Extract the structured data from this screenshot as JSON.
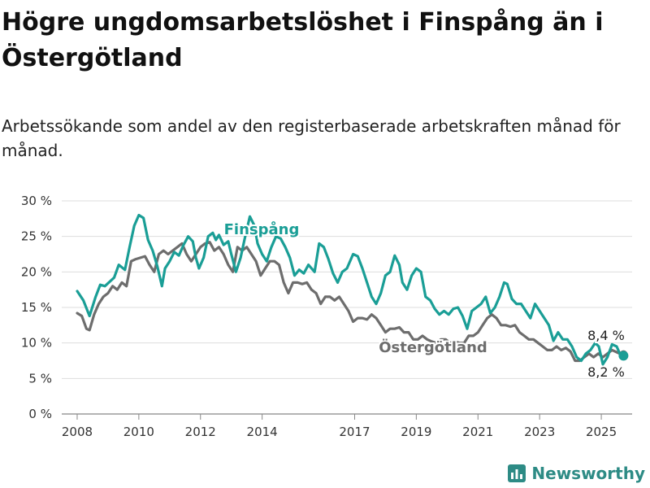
{
  "title": "Högre ungdomsarbetslöshet i Finspång än i Östergötland",
  "subtitle": "Arbetssökande som andel av den registerbaserade arbetskraften månad för månad.",
  "brand": {
    "name": "Newsworthy",
    "icon": "newsworthy-logo-icon",
    "color": "#2d8b85"
  },
  "chart_data": {
    "type": "line",
    "title": "Högre ungdomsarbetslöshet i Finspång än i Östergötland",
    "xlabel": "",
    "ylabel": "",
    "xlim": [
      2007.5,
      2026.0
    ],
    "ylim": [
      0,
      30
    ],
    "grid": true,
    "legend": "inline",
    "x_ticks": [
      2008,
      2010,
      2012,
      2014,
      2017,
      2019,
      2021,
      2023,
      2025
    ],
    "y_ticks": [
      0,
      5,
      10,
      15,
      20,
      25,
      30
    ],
    "y_tick_labels": [
      "0 %",
      "5 %",
      "10 %",
      "15 %",
      "20 %",
      "25 %",
      "30 %"
    ],
    "series": [
      {
        "name": "Finspång",
        "color": "#1a9e96",
        "end_label": "8,2 %",
        "points": [
          [
            2008.0,
            17.3
          ],
          [
            2008.2,
            16.0
          ],
          [
            2008.4,
            13.8
          ],
          [
            2008.6,
            16.5
          ],
          [
            2008.75,
            18.2
          ],
          [
            2008.9,
            18.0
          ],
          [
            2009.05,
            18.6
          ],
          [
            2009.2,
            19.2
          ],
          [
            2009.35,
            21.0
          ],
          [
            2009.55,
            20.3
          ],
          [
            2009.7,
            23.5
          ],
          [
            2009.85,
            26.5
          ],
          [
            2010.0,
            28.0
          ],
          [
            2010.15,
            27.6
          ],
          [
            2010.3,
            24.5
          ],
          [
            2010.45,
            23.0
          ],
          [
            2010.6,
            20.8
          ],
          [
            2010.75,
            18.0
          ],
          [
            2010.85,
            20.5
          ],
          [
            2011.0,
            21.5
          ],
          [
            2011.15,
            22.8
          ],
          [
            2011.3,
            22.3
          ],
          [
            2011.45,
            23.8
          ],
          [
            2011.6,
            25.0
          ],
          [
            2011.75,
            24.3
          ],
          [
            2011.85,
            22.0
          ],
          [
            2011.95,
            20.5
          ],
          [
            2012.1,
            22.0
          ],
          [
            2012.25,
            25.0
          ],
          [
            2012.4,
            25.5
          ],
          [
            2012.5,
            24.5
          ],
          [
            2012.6,
            25.2
          ],
          [
            2012.75,
            23.8
          ],
          [
            2012.9,
            24.3
          ],
          [
            2013.0,
            22.5
          ],
          [
            2013.15,
            20.0
          ],
          [
            2013.3,
            22.0
          ],
          [
            2013.45,
            25.0
          ],
          [
            2013.6,
            27.8
          ],
          [
            2013.75,
            26.5
          ],
          [
            2013.85,
            24.0
          ],
          [
            2014.0,
            22.5
          ],
          [
            2014.15,
            21.5
          ],
          [
            2014.3,
            23.5
          ],
          [
            2014.45,
            25.0
          ],
          [
            2014.6,
            24.7
          ],
          [
            2014.75,
            23.5
          ],
          [
            2014.9,
            22.0
          ],
          [
            2015.05,
            19.5
          ],
          [
            2015.2,
            20.3
          ],
          [
            2015.35,
            19.8
          ],
          [
            2015.5,
            21.0
          ],
          [
            2015.7,
            20.0
          ],
          [
            2015.85,
            24.0
          ],
          [
            2016.0,
            23.5
          ],
          [
            2016.15,
            21.8
          ],
          [
            2016.3,
            19.8
          ],
          [
            2016.45,
            18.5
          ],
          [
            2016.6,
            20.0
          ],
          [
            2016.75,
            20.5
          ],
          [
            2016.95,
            22.5
          ],
          [
            2017.1,
            22.2
          ],
          [
            2017.25,
            20.5
          ],
          [
            2017.4,
            18.5
          ],
          [
            2017.55,
            16.5
          ],
          [
            2017.7,
            15.5
          ],
          [
            2017.85,
            17.0
          ],
          [
            2018.0,
            19.5
          ],
          [
            2018.15,
            20.0
          ],
          [
            2018.3,
            22.3
          ],
          [
            2018.45,
            21.0
          ],
          [
            2018.55,
            18.5
          ],
          [
            2018.7,
            17.5
          ],
          [
            2018.85,
            19.5
          ],
          [
            2019.0,
            20.5
          ],
          [
            2019.15,
            20.0
          ],
          [
            2019.3,
            16.5
          ],
          [
            2019.45,
            16.0
          ],
          [
            2019.6,
            14.8
          ],
          [
            2019.75,
            14.0
          ],
          [
            2019.9,
            14.5
          ],
          [
            2020.05,
            14.0
          ],
          [
            2020.2,
            14.8
          ],
          [
            2020.35,
            15.0
          ],
          [
            2020.5,
            13.8
          ],
          [
            2020.65,
            12.0
          ],
          [
            2020.8,
            14.5
          ],
          [
            2020.95,
            15.0
          ],
          [
            2021.1,
            15.5
          ],
          [
            2021.25,
            16.5
          ],
          [
            2021.4,
            14.2
          ],
          [
            2021.55,
            15.0
          ],
          [
            2021.7,
            16.5
          ],
          [
            2021.85,
            18.5
          ],
          [
            2021.95,
            18.3
          ],
          [
            2022.1,
            16.2
          ],
          [
            2022.25,
            15.5
          ],
          [
            2022.4,
            15.5
          ],
          [
            2022.55,
            14.5
          ],
          [
            2022.7,
            13.5
          ],
          [
            2022.85,
            15.5
          ],
          [
            2023.0,
            14.5
          ],
          [
            2023.15,
            13.5
          ],
          [
            2023.3,
            12.5
          ],
          [
            2023.45,
            10.3
          ],
          [
            2023.6,
            11.5
          ],
          [
            2023.75,
            10.5
          ],
          [
            2023.9,
            10.5
          ],
          [
            2024.05,
            9.5
          ],
          [
            2024.2,
            8.0
          ],
          [
            2024.35,
            7.5
          ],
          [
            2024.5,
            8.5
          ],
          [
            2024.65,
            9.0
          ],
          [
            2024.8,
            10.0
          ],
          [
            2024.92,
            9.5
          ],
          [
            2025.05,
            7.0
          ],
          [
            2025.2,
            8.0
          ],
          [
            2025.35,
            9.8
          ],
          [
            2025.5,
            9.5
          ],
          [
            2025.6,
            8.5
          ],
          [
            2025.72,
            8.2
          ]
        ]
      },
      {
        "name": "Östergötland",
        "color": "#6d6d6d",
        "end_label": "8,4 %",
        "points": [
          [
            2008.0,
            14.2
          ],
          [
            2008.15,
            13.8
          ],
          [
            2008.3,
            12.0
          ],
          [
            2008.4,
            11.8
          ],
          [
            2008.55,
            14.0
          ],
          [
            2008.7,
            15.5
          ],
          [
            2008.85,
            16.5
          ],
          [
            2009.0,
            17.0
          ],
          [
            2009.15,
            18.0
          ],
          [
            2009.3,
            17.5
          ],
          [
            2009.45,
            18.5
          ],
          [
            2009.6,
            18.0
          ],
          [
            2009.75,
            21.5
          ],
          [
            2009.9,
            21.8
          ],
          [
            2010.05,
            22.0
          ],
          [
            2010.2,
            22.2
          ],
          [
            2010.35,
            21.0
          ],
          [
            2010.5,
            20.0
          ],
          [
            2010.65,
            22.5
          ],
          [
            2010.8,
            23.0
          ],
          [
            2010.95,
            22.5
          ],
          [
            2011.1,
            23.0
          ],
          [
            2011.25,
            23.5
          ],
          [
            2011.4,
            24.0
          ],
          [
            2011.55,
            22.5
          ],
          [
            2011.7,
            21.5
          ],
          [
            2011.85,
            22.5
          ],
          [
            2012.0,
            23.5
          ],
          [
            2012.15,
            24.0
          ],
          [
            2012.3,
            24.2
          ],
          [
            2012.45,
            23.0
          ],
          [
            2012.6,
            23.5
          ],
          [
            2012.75,
            22.5
          ],
          [
            2012.9,
            21.0
          ],
          [
            2013.05,
            20.0
          ],
          [
            2013.2,
            23.5
          ],
          [
            2013.35,
            23.0
          ],
          [
            2013.5,
            23.5
          ],
          [
            2013.65,
            22.5
          ],
          [
            2013.8,
            21.5
          ],
          [
            2013.95,
            19.5
          ],
          [
            2014.1,
            20.5
          ],
          [
            2014.25,
            21.5
          ],
          [
            2014.4,
            21.5
          ],
          [
            2014.55,
            21.0
          ],
          [
            2014.7,
            18.5
          ],
          [
            2014.85,
            17.0
          ],
          [
            2015.0,
            18.5
          ],
          [
            2015.15,
            18.5
          ],
          [
            2015.3,
            18.3
          ],
          [
            2015.45,
            18.5
          ],
          [
            2015.6,
            17.5
          ],
          [
            2015.75,
            17.0
          ],
          [
            2015.9,
            15.5
          ],
          [
            2016.05,
            16.5
          ],
          [
            2016.2,
            16.5
          ],
          [
            2016.35,
            16.0
          ],
          [
            2016.5,
            16.5
          ],
          [
            2016.65,
            15.5
          ],
          [
            2016.8,
            14.5
          ],
          [
            2016.95,
            13.0
          ],
          [
            2017.1,
            13.5
          ],
          [
            2017.25,
            13.5
          ],
          [
            2017.4,
            13.3
          ],
          [
            2017.55,
            14.0
          ],
          [
            2017.7,
            13.5
          ],
          [
            2017.85,
            12.5
          ],
          [
            2018.0,
            11.5
          ],
          [
            2018.15,
            12.0
          ],
          [
            2018.3,
            12.0
          ],
          [
            2018.45,
            12.2
          ],
          [
            2018.6,
            11.5
          ],
          [
            2018.75,
            11.5
          ],
          [
            2018.9,
            10.5
          ],
          [
            2019.05,
            10.5
          ],
          [
            2019.2,
            11.0
          ],
          [
            2019.35,
            10.5
          ],
          [
            2019.5,
            10.2
          ],
          [
            2019.65,
            10.0
          ],
          [
            2019.8,
            10.5
          ],
          [
            2019.95,
            10.5
          ],
          [
            2020.1,
            10.0
          ],
          [
            2020.25,
            10.2
          ],
          [
            2020.4,
            10.0
          ],
          [
            2020.55,
            10.0
          ],
          [
            2020.7,
            11.0
          ],
          [
            2020.85,
            11.0
          ],
          [
            2021.0,
            11.5
          ],
          [
            2021.15,
            12.5
          ],
          [
            2021.3,
            13.5
          ],
          [
            2021.45,
            14.0
          ],
          [
            2021.6,
            13.5
          ],
          [
            2021.75,
            12.5
          ],
          [
            2021.9,
            12.5
          ],
          [
            2022.05,
            12.3
          ],
          [
            2022.2,
            12.5
          ],
          [
            2022.35,
            11.5
          ],
          [
            2022.5,
            11.0
          ],
          [
            2022.65,
            10.5
          ],
          [
            2022.8,
            10.5
          ],
          [
            2022.95,
            10.0
          ],
          [
            2023.1,
            9.5
          ],
          [
            2023.25,
            9.0
          ],
          [
            2023.4,
            9.0
          ],
          [
            2023.55,
            9.5
          ],
          [
            2023.7,
            9.0
          ],
          [
            2023.85,
            9.3
          ],
          [
            2024.0,
            8.8
          ],
          [
            2024.15,
            7.5
          ],
          [
            2024.3,
            7.5
          ],
          [
            2024.45,
            8.0
          ],
          [
            2024.6,
            8.5
          ],
          [
            2024.75,
            8.0
          ],
          [
            2024.9,
            8.5
          ],
          [
            2025.05,
            8.0
          ],
          [
            2025.2,
            8.5
          ],
          [
            2025.35,
            9.0
          ],
          [
            2025.5,
            8.7
          ],
          [
            2025.6,
            8.5
          ],
          [
            2025.72,
            8.4
          ]
        ]
      }
    ]
  }
}
